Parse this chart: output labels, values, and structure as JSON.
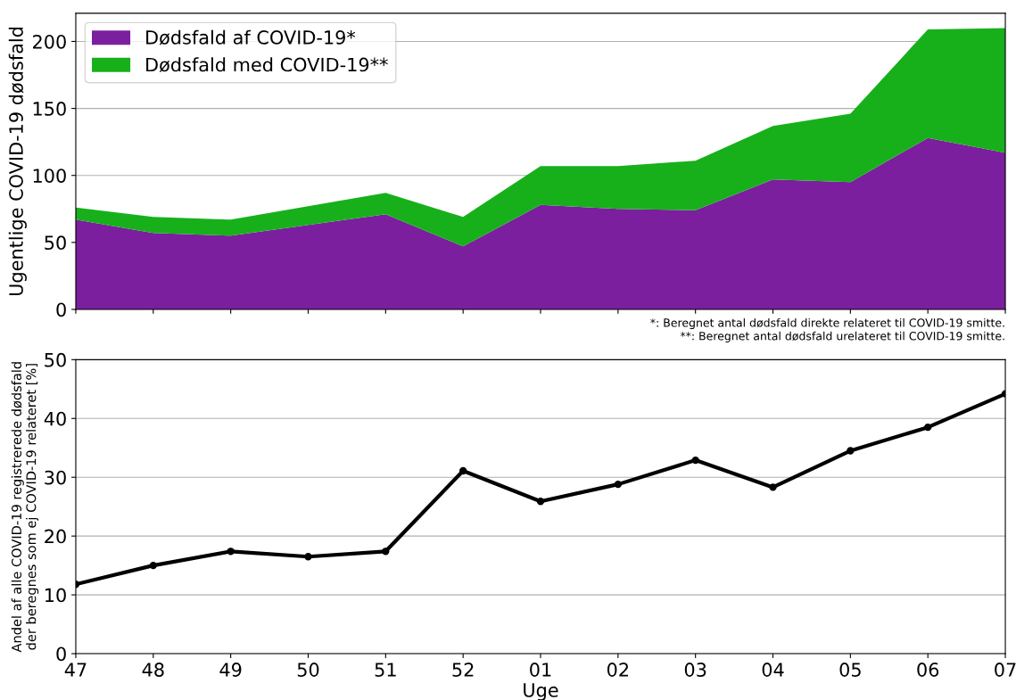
{
  "chart_data": [
    {
      "type": "area",
      "stacked": true,
      "ylabel": "Ugentlige COVID-19 dødsfald",
      "categories": [
        "47",
        "48",
        "49",
        "50",
        "51",
        "52",
        "01",
        "02",
        "03",
        "04",
        "05",
        "06",
        "07"
      ],
      "tick_labels": "y",
      "ylim": [
        0,
        221
      ],
      "yticks": [
        0,
        50,
        100,
        150,
        200
      ],
      "grid": "y",
      "legend": "top left",
      "series": [
        {
          "name": "Dødsfald af COVID-19*",
          "color": "#7b1f9e",
          "values": [
            67,
            57,
            55,
            63,
            71,
            47,
            78,
            75,
            74,
            97,
            95,
            128,
            117
          ]
        },
        {
          "name": "Dødsfald med COVID-19**",
          "color": "#17b01b",
          "values": [
            9,
            12,
            12,
            14,
            16,
            22,
            29,
            32,
            37,
            40,
            51,
            81,
            93
          ]
        }
      ],
      "annotations": [
        "*: Beregnet antal dødsfald direkte relateret til COVID-19 smitte.",
        "**: Beregnet antal dødsfald urelateret til COVID-19 smitte."
      ]
    },
    {
      "type": "line",
      "xlabel": "Uge",
      "ylabel": "Andel af alle COVID-19 registrerede dødsfald\nder beregnes som ej COVID-19 relateret [%]",
      "categories": [
        "47",
        "48",
        "49",
        "50",
        "51",
        "52",
        "01",
        "02",
        "03",
        "04",
        "05",
        "06",
        "07"
      ],
      "ylim": [
        0,
        50
      ],
      "yticks": [
        0,
        10,
        20,
        30,
        40,
        50
      ],
      "grid": "y",
      "marker": "circle",
      "line_style": "solid",
      "series": [
        {
          "color": "#000000",
          "values": [
            11.8,
            15.0,
            17.4,
            16.5,
            17.4,
            31.1,
            25.9,
            28.8,
            32.9,
            28.3,
            34.5,
            38.5,
            44.2
          ]
        }
      ]
    }
  ]
}
